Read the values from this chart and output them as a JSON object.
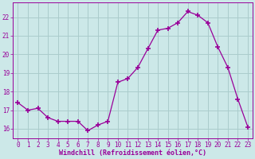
{
  "x": [
    0,
    1,
    2,
    3,
    4,
    5,
    6,
    7,
    8,
    9,
    10,
    11,
    12,
    13,
    14,
    15,
    16,
    17,
    18,
    19,
    20,
    21,
    22,
    23
  ],
  "y": [
    17.4,
    17.0,
    17.1,
    16.6,
    16.4,
    16.4,
    16.4,
    15.9,
    16.2,
    16.4,
    18.5,
    18.7,
    19.3,
    20.3,
    21.3,
    21.4,
    21.7,
    22.3,
    22.1,
    21.7,
    20.4,
    19.3,
    17.6,
    16.1
  ],
  "line_color": "#990099",
  "marker": "+",
  "marker_size": 4,
  "bg_color": "#cce8e8",
  "grid_color": "#aacccc",
  "xlabel": "Windchill (Refroidissement éolien,°C)",
  "xlabel_color": "#990099",
  "tick_color": "#990099",
  "ylim": [
    15.5,
    22.8
  ],
  "yticks": [
    16,
    17,
    18,
    19,
    20,
    21,
    22
  ],
  "xtick_labels": [
    "0",
    "1",
    "2",
    "3",
    "4",
    "5",
    "6",
    "7",
    "8",
    "9",
    "10",
    "11",
    "12",
    "13",
    "14",
    "15",
    "16",
    "17",
    "18",
    "19",
    "20",
    "21",
    "22",
    "23"
  ],
  "xlim": [
    -0.5,
    23.5
  ]
}
